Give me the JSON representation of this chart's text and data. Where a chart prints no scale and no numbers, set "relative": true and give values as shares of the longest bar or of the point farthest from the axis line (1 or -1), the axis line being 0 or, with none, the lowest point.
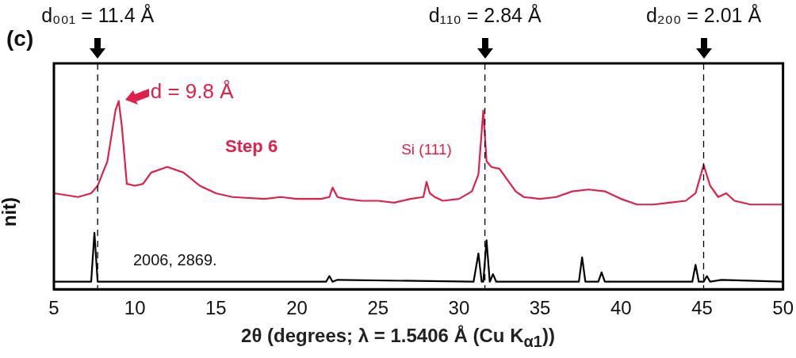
{
  "chart_data": {
    "type": "line",
    "relative": true,
    "xlabel": "2θ (degrees; λ = 1.5406 Å (Cu K$_{α1}$))",
    "ylabel": "nit)",
    "xlim": [
      5,
      50
    ],
    "xticks": [
      5,
      10,
      15,
      20,
      25,
      30,
      35,
      40,
      45,
      50
    ],
    "grid": false,
    "legend": false,
    "marker": "none",
    "line_style": "solid",
    "series": [
      {
        "name": "Step 6",
        "color": "#e0204a",
        "x": [
          5,
          6.5,
          7.3,
          7.7,
          8.3,
          8.8,
          9.0,
          9.2,
          9.5,
          10,
          10.5,
          11,
          12,
          13,
          14,
          15,
          16,
          18,
          19,
          20,
          21.5,
          22,
          22.2,
          22.5,
          23,
          24,
          25,
          26,
          27,
          27.8,
          28.0,
          28.2,
          28.5,
          29,
          30,
          30.8,
          31.2,
          31.5,
          31.7,
          32,
          32.5,
          33,
          33.5,
          34,
          35,
          36,
          37,
          38,
          39,
          40,
          41,
          42,
          43,
          44,
          44.6,
          45.1,
          45.5,
          46,
          46.5,
          47,
          48,
          50
        ],
        "values": [
          0.51,
          0.49,
          0.51,
          0.55,
          0.68,
          0.95,
          1,
          0.86,
          0.56,
          0.55,
          0.56,
          0.62,
          0.65,
          0.62,
          0.55,
          0.51,
          0.49,
          0.48,
          0.49,
          0.48,
          0.48,
          0.49,
          0.54,
          0.49,
          0.48,
          0.47,
          0.47,
          0.46,
          0.48,
          0.49,
          0.57,
          0.51,
          0.49,
          0.47,
          0.48,
          0.52,
          0.61,
          0.95,
          0.68,
          0.65,
          0.64,
          0.58,
          0.52,
          0.49,
          0.48,
          0.49,
          0.52,
          0.53,
          0.52,
          0.48,
          0.45,
          0.45,
          0.46,
          0.47,
          0.51,
          0.66,
          0.55,
          0.49,
          0.51,
          0.47,
          0.45,
          0.45
        ]
      },
      {
        "color": "#000000",
        "x": [
          5,
          7.3,
          7.5,
          7.7,
          21.8,
          22,
          22.2,
          22.5,
          30.9,
          31.2,
          31.4,
          31.5,
          31.7,
          31.9,
          32.1,
          32.3,
          34.8,
          37.4,
          37.6,
          37.8,
          38.6,
          38.8,
          39.0,
          44.4,
          44.6,
          44.8,
          45.1,
          45.3,
          45.5,
          46.2,
          50
        ],
        "values": [
          0.04,
          0.04,
          0.3,
          0.04,
          0.04,
          0.07,
          0.04,
          0.05,
          0.04,
          0.19,
          0.04,
          0.04,
          0.26,
          0.04,
          0.08,
          0.04,
          0.04,
          0.04,
          0.17,
          0.04,
          0.04,
          0.09,
          0.04,
          0.04,
          0.13,
          0.04,
          0.04,
          0.07,
          0.04,
          0.05,
          0.04
        ]
      }
    ],
    "ref_lines": [
      {
        "axis": "x",
        "value": 7.7,
        "line_style": "dashed",
        "color": "#000000"
      },
      {
        "axis": "x",
        "value": 31.6,
        "line_style": "dashed",
        "color": "#000000"
      },
      {
        "axis": "x",
        "value": 45.1,
        "line_style": "dashed",
        "color": "#000000"
      }
    ],
    "annotations": [
      "(c)",
      "d₀₀₁ = 11.4 Å",
      "d₁₁₀ = 2.84 Å",
      "d₂₀₀ = 2.01 Å",
      {
        "text": "d = 9.8 Å",
        "x": 9.0,
        "y": 1
      },
      {
        "text": "Si (111)",
        "x": 28.0,
        "y": 0.57
      },
      "2006, 2869."
    ]
  }
}
